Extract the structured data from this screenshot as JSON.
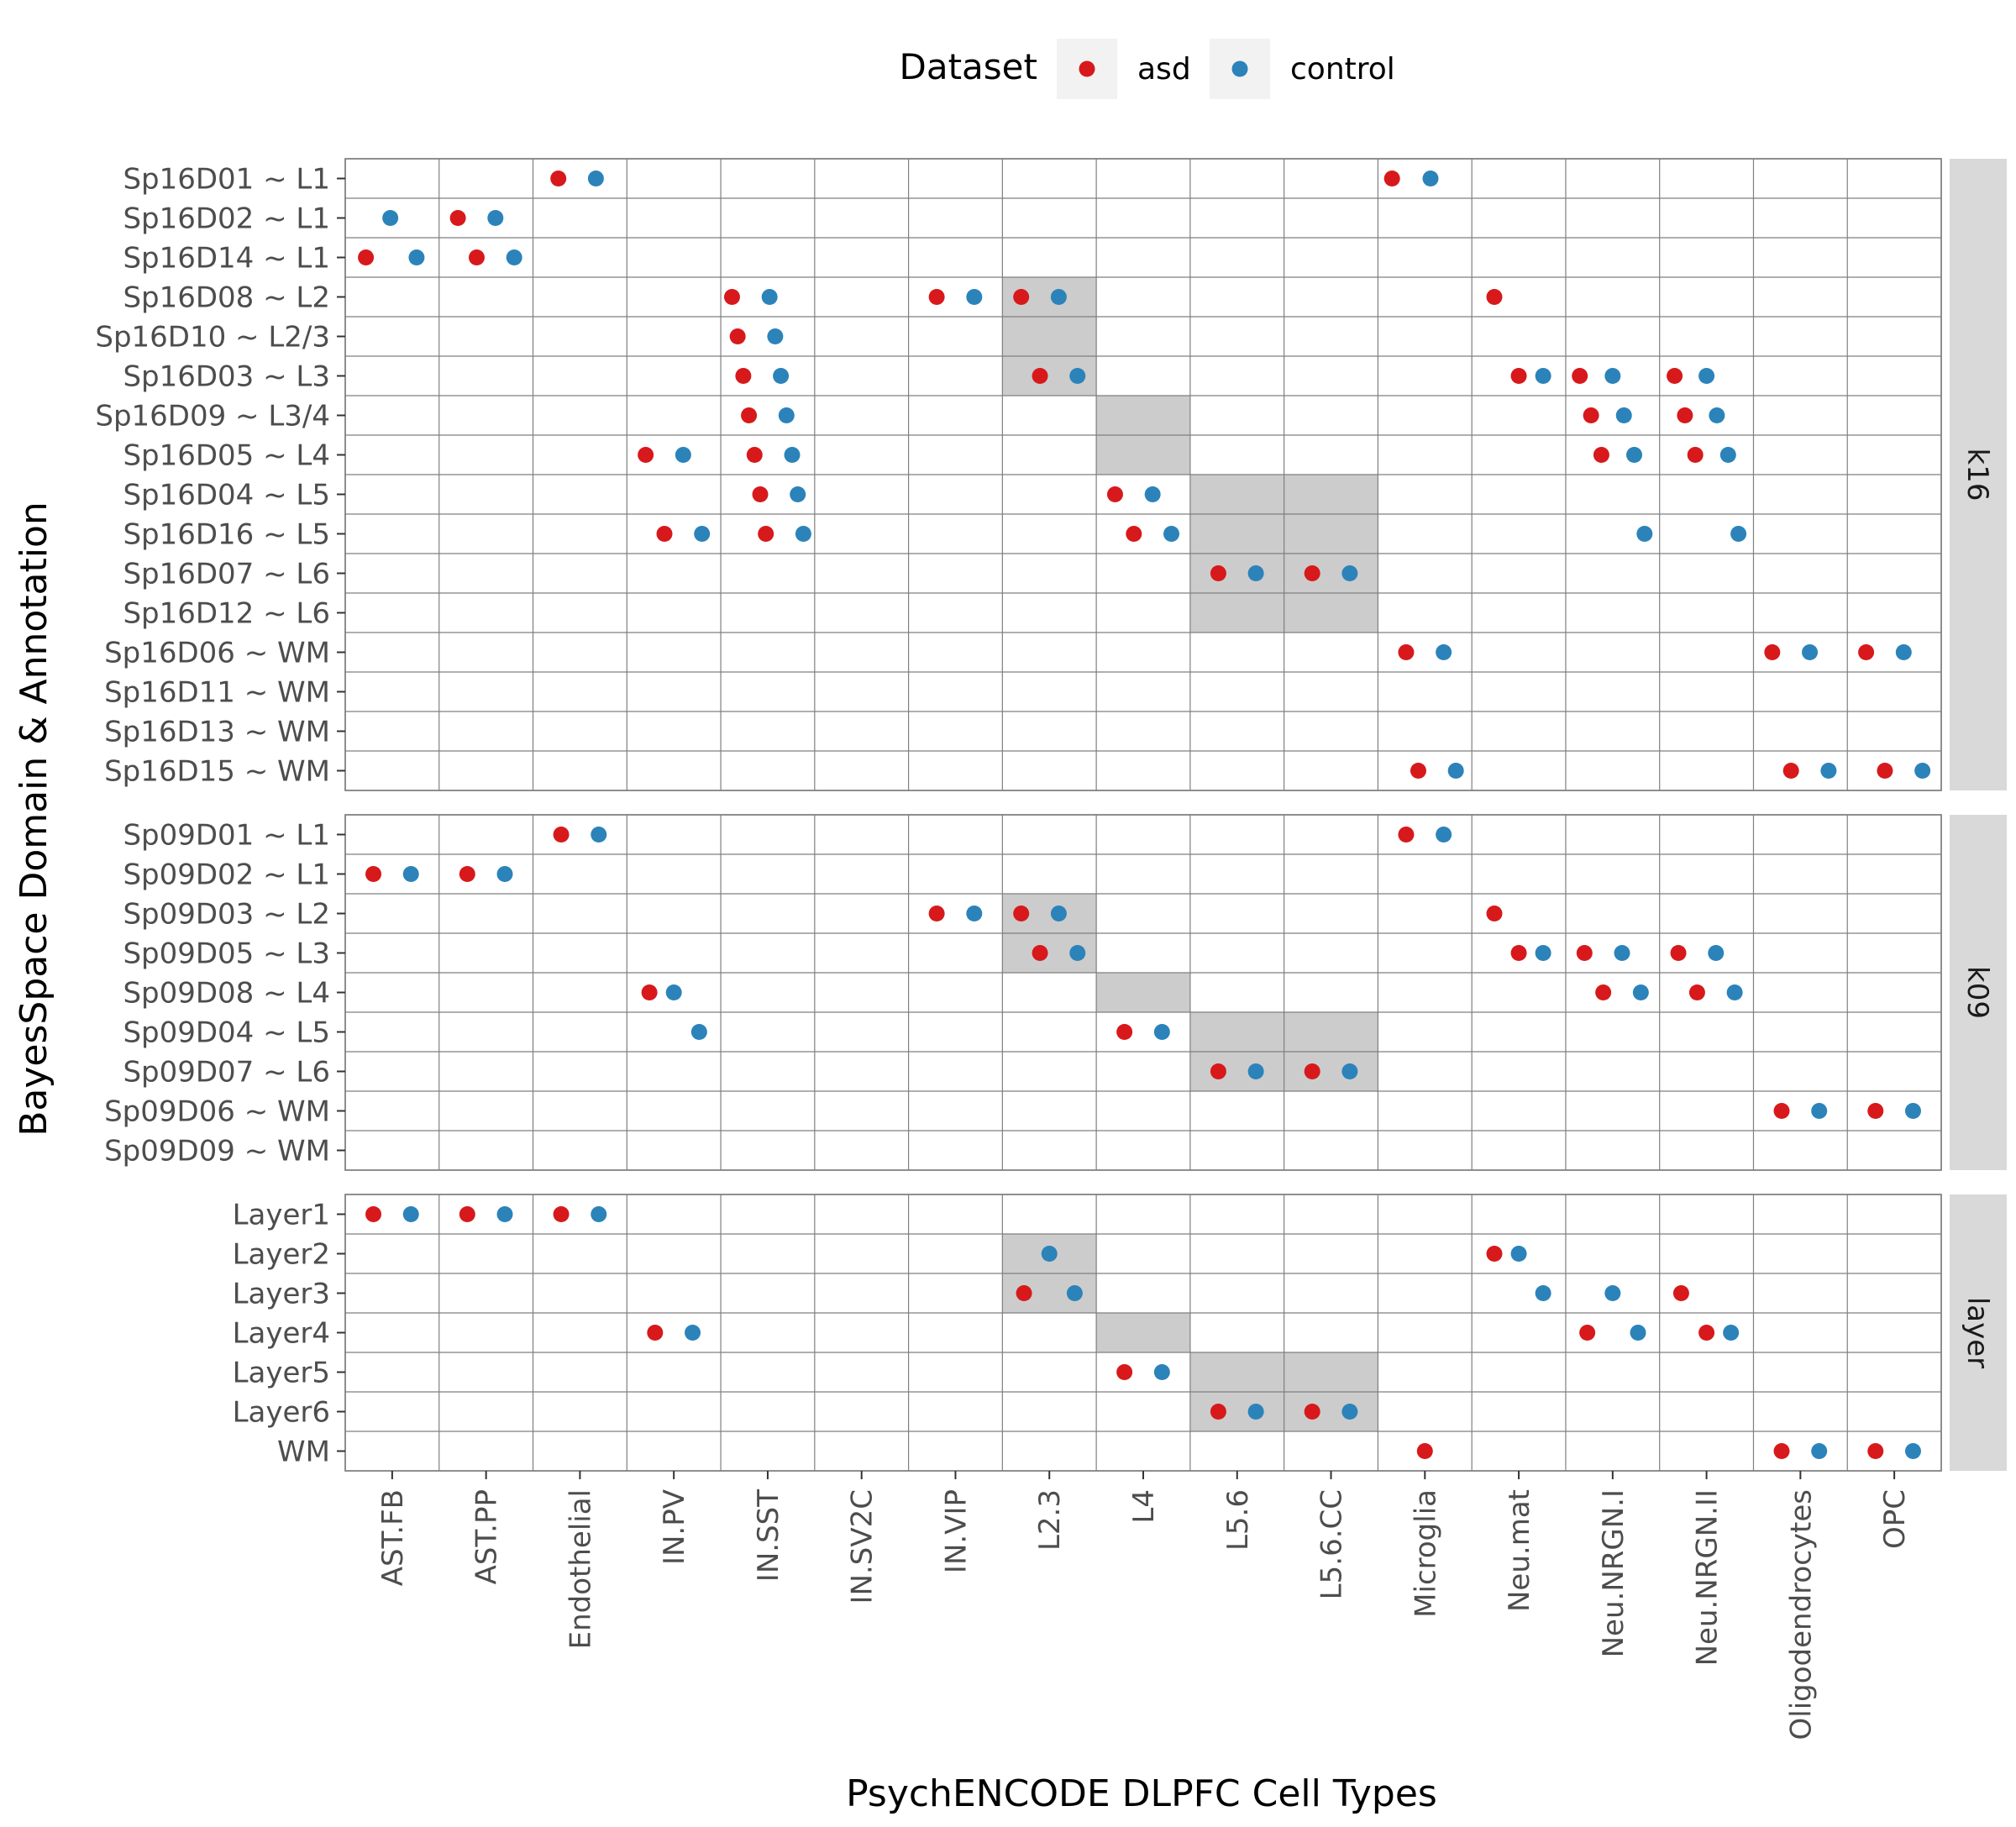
{
  "chart_data": {
    "type": "scatter",
    "xlabel": "PsychENCODE DLPFC Cell Types",
    "ylabel": "BayesSpace Domain & Annotation",
    "legend": {
      "title": "Dataset",
      "position": "top",
      "entries": [
        {
          "name": "asd",
          "color": "#D7191C"
        },
        {
          "name": "control",
          "color": "#2B83BA"
        }
      ]
    },
    "categories": [
      "AST.FB",
      "AST.PP",
      "Endothelial",
      "IN.PV",
      "IN.SST",
      "IN.SV2C",
      "IN.VIP",
      "L2.3",
      "L4",
      "L5.6",
      "L5.6.CC",
      "Microglia",
      "Neu.mat",
      "Neu.NRGN.I",
      "Neu.NRGN.II",
      "Oligodendrocytes",
      "OPC"
    ],
    "grid": true,
    "highlight_color": "#cccccc",
    "panels": [
      {
        "strip": "k16",
        "rows": [
          "Sp16D01 ~ L1",
          "Sp16D02 ~ L1",
          "Sp16D14 ~ L1",
          "Sp16D08 ~ L2",
          "Sp16D10 ~ L2/3",
          "Sp16D03 ~ L3",
          "Sp16D09 ~ L3/4",
          "Sp16D05 ~ L4",
          "Sp16D04 ~ L5",
          "Sp16D16 ~ L5",
          "Sp16D07 ~ L6",
          "Sp16D12 ~ L6",
          "Sp16D06 ~ WM",
          "Sp16D11 ~ WM",
          "Sp16D13 ~ WM",
          "Sp16D15 ~ WM"
        ],
        "highlights": [
          {
            "row": "Sp16D08 ~ L2",
            "cell": "L2.3"
          },
          {
            "row": "Sp16D10 ~ L2/3",
            "cell": "L2.3"
          },
          {
            "row": "Sp16D03 ~ L3",
            "cell": "L2.3"
          },
          {
            "row": "Sp16D09 ~ L3/4",
            "cell": "L4"
          },
          {
            "row": "Sp16D05 ~ L4",
            "cell": "L4"
          },
          {
            "row": "Sp16D04 ~ L5",
            "cell": "L5.6"
          },
          {
            "row": "Sp16D04 ~ L5",
            "cell": "L5.6.CC"
          },
          {
            "row": "Sp16D16 ~ L5",
            "cell": "L5.6"
          },
          {
            "row": "Sp16D16 ~ L5",
            "cell": "L5.6.CC"
          },
          {
            "row": "Sp16D07 ~ L6",
            "cell": "L5.6"
          },
          {
            "row": "Sp16D07 ~ L6",
            "cell": "L5.6.CC"
          },
          {
            "row": "Sp16D12 ~ L6",
            "cell": "L5.6"
          },
          {
            "row": "Sp16D12 ~ L6",
            "cell": "L5.6.CC"
          }
        ],
        "points": [
          {
            "row": "Sp16D01 ~ L1",
            "cell": "Endothelial",
            "asd": 0.27,
            "control": 0.67
          },
          {
            "row": "Sp16D01 ~ L1",
            "cell": "Microglia",
            "asd": 0.15,
            "control": 0.56
          },
          {
            "row": "Sp16D02 ~ L1",
            "cell": "AST.FB",
            "asd": null,
            "control": 0.48
          },
          {
            "row": "Sp16D02 ~ L1",
            "cell": "AST.PP",
            "asd": 0.2,
            "control": 0.6
          },
          {
            "row": "Sp16D14 ~ L1",
            "cell": "AST.FB",
            "asd": 0.22,
            "control": 0.76
          },
          {
            "row": "Sp16D14 ~ L1",
            "cell": "AST.PP",
            "asd": 0.4,
            "control": 0.8
          },
          {
            "row": "Sp16D08 ~ L2",
            "cell": "IN.SST",
            "asd": 0.12,
            "control": 0.52
          },
          {
            "row": "Sp16D08 ~ L2",
            "cell": "IN.VIP",
            "asd": 0.3,
            "control": 0.7
          },
          {
            "row": "Sp16D08 ~ L2",
            "cell": "L2.3",
            "asd": 0.2,
            "control": 0.6
          },
          {
            "row": "Sp16D08 ~ L2",
            "cell": "Neu.mat",
            "asd": 0.24,
            "control": null
          },
          {
            "row": "Sp16D10 ~ L2/3",
            "cell": "IN.SST",
            "asd": 0.18,
            "control": 0.58
          },
          {
            "row": "Sp16D03 ~ L3",
            "cell": "IN.SST",
            "asd": 0.24,
            "control": 0.64
          },
          {
            "row": "Sp16D03 ~ L3",
            "cell": "L2.3",
            "asd": 0.4,
            "control": 0.8
          },
          {
            "row": "Sp16D03 ~ L3",
            "cell": "Neu.mat",
            "asd": 0.5,
            "control": 0.76
          },
          {
            "row": "Sp16D03 ~ L3",
            "cell": "Neu.NRGN.I",
            "asd": 0.15,
            "control": 0.5
          },
          {
            "row": "Sp16D03 ~ L3",
            "cell": "Neu.NRGN.II",
            "asd": 0.16,
            "control": 0.5
          },
          {
            "row": "Sp16D09 ~ L3/4",
            "cell": "IN.SST",
            "asd": 0.3,
            "control": 0.7
          },
          {
            "row": "Sp16D09 ~ L3/4",
            "cell": "Neu.NRGN.I",
            "asd": 0.27,
            "control": 0.62
          },
          {
            "row": "Sp16D09 ~ L3/4",
            "cell": "Neu.NRGN.II",
            "asd": 0.27,
            "control": 0.61
          },
          {
            "row": "Sp16D05 ~ L4",
            "cell": "IN.PV",
            "asd": 0.2,
            "control": 0.6
          },
          {
            "row": "Sp16D05 ~ L4",
            "cell": "IN.SST",
            "asd": 0.36,
            "control": 0.76
          },
          {
            "row": "Sp16D05 ~ L4",
            "cell": "Neu.NRGN.I",
            "asd": 0.38,
            "control": 0.73
          },
          {
            "row": "Sp16D05 ~ L4",
            "cell": "Neu.NRGN.II",
            "asd": 0.38,
            "control": 0.73
          },
          {
            "row": "Sp16D04 ~ L5",
            "cell": "IN.SST",
            "asd": 0.42,
            "control": 0.82
          },
          {
            "row": "Sp16D04 ~ L5",
            "cell": "L4",
            "asd": 0.2,
            "control": 0.6
          },
          {
            "row": "Sp16D16 ~ L5",
            "cell": "IN.PV",
            "asd": 0.4,
            "control": 0.8
          },
          {
            "row": "Sp16D16 ~ L5",
            "cell": "IN.SST",
            "asd": 0.48,
            "control": 0.88
          },
          {
            "row": "Sp16D16 ~ L5",
            "cell": "L4",
            "asd": 0.4,
            "control": 0.8
          },
          {
            "row": "Sp16D16 ~ L5",
            "cell": "Neu.NRGN.I",
            "asd": null,
            "control": 0.84
          },
          {
            "row": "Sp16D16 ~ L5",
            "cell": "Neu.NRGN.II",
            "asd": null,
            "control": 0.84
          },
          {
            "row": "Sp16D07 ~ L6",
            "cell": "L5.6",
            "asd": 0.3,
            "control": 0.7
          },
          {
            "row": "Sp16D07 ~ L6",
            "cell": "L5.6.CC",
            "asd": 0.3,
            "control": 0.7
          },
          {
            "row": "Sp16D06 ~ WM",
            "cell": "Microglia",
            "asd": 0.3,
            "control": 0.7
          },
          {
            "row": "Sp16D06 ~ WM",
            "cell": "Oligodendrocytes",
            "asd": 0.2,
            "control": 0.6
          },
          {
            "row": "Sp16D06 ~ WM",
            "cell": "OPC",
            "asd": 0.2,
            "control": 0.6
          },
          {
            "row": "Sp16D15 ~ WM",
            "cell": "Microglia",
            "asd": 0.43,
            "control": 0.83
          },
          {
            "row": "Sp16D15 ~ WM",
            "cell": "Oligodendrocytes",
            "asd": 0.4,
            "control": 0.8
          },
          {
            "row": "Sp16D15 ~ WM",
            "cell": "OPC",
            "asd": 0.4,
            "control": 0.8
          }
        ]
      },
      {
        "strip": "k09",
        "rows": [
          "Sp09D01 ~ L1",
          "Sp09D02 ~ L1",
          "Sp09D03 ~ L2",
          "Sp09D05 ~ L3",
          "Sp09D08 ~ L4",
          "Sp09D04 ~ L5",
          "Sp09D07 ~ L6",
          "Sp09D06 ~ WM",
          "Sp09D09 ~ WM"
        ],
        "highlights": [
          {
            "row": "Sp09D03 ~ L2",
            "cell": "L2.3"
          },
          {
            "row": "Sp09D05 ~ L3",
            "cell": "L2.3"
          },
          {
            "row": "Sp09D08 ~ L4",
            "cell": "L4"
          },
          {
            "row": "Sp09D04 ~ L5",
            "cell": "L5.6"
          },
          {
            "row": "Sp09D04 ~ L5",
            "cell": "L5.6.CC"
          },
          {
            "row": "Sp09D07 ~ L6",
            "cell": "L5.6"
          },
          {
            "row": "Sp09D07 ~ L6",
            "cell": "L5.6.CC"
          }
        ],
        "points": [
          {
            "row": "Sp09D01 ~ L1",
            "cell": "Endothelial",
            "asd": 0.3,
            "control": 0.7
          },
          {
            "row": "Sp09D01 ~ L1",
            "cell": "Microglia",
            "asd": 0.3,
            "control": 0.7
          },
          {
            "row": "Sp09D02 ~ L1",
            "cell": "AST.FB",
            "asd": 0.3,
            "control": 0.7
          },
          {
            "row": "Sp09D02 ~ L1",
            "cell": "AST.PP",
            "asd": 0.3,
            "control": 0.7
          },
          {
            "row": "Sp09D03 ~ L2",
            "cell": "IN.VIP",
            "asd": 0.3,
            "control": 0.7
          },
          {
            "row": "Sp09D03 ~ L2",
            "cell": "L2.3",
            "asd": 0.2,
            "control": 0.6
          },
          {
            "row": "Sp09D03 ~ L2",
            "cell": "Neu.mat",
            "asd": 0.24,
            "control": null
          },
          {
            "row": "Sp09D05 ~ L3",
            "cell": "L2.3",
            "asd": 0.4,
            "control": 0.8
          },
          {
            "row": "Sp09D05 ~ L3",
            "cell": "Neu.mat",
            "asd": 0.5,
            "control": 0.76
          },
          {
            "row": "Sp09D05 ~ L3",
            "cell": "Neu.NRGN.I",
            "asd": 0.2,
            "control": 0.6
          },
          {
            "row": "Sp09D05 ~ L3",
            "cell": "Neu.NRGN.II",
            "asd": 0.2,
            "control": 0.6
          },
          {
            "row": "Sp09D08 ~ L4",
            "cell": "IN.PV",
            "asd": 0.24,
            "control": 0.5
          },
          {
            "row": "Sp09D08 ~ L4",
            "cell": "Neu.NRGN.I",
            "asd": 0.4,
            "control": 0.8
          },
          {
            "row": "Sp09D08 ~ L4",
            "cell": "Neu.NRGN.II",
            "asd": 0.4,
            "control": 0.8
          },
          {
            "row": "Sp09D04 ~ L5",
            "cell": "IN.PV",
            "asd": null,
            "control": 0.77
          },
          {
            "row": "Sp09D04 ~ L5",
            "cell": "L4",
            "asd": 0.3,
            "control": 0.7
          },
          {
            "row": "Sp09D07 ~ L6",
            "cell": "L5.6",
            "asd": 0.3,
            "control": 0.7
          },
          {
            "row": "Sp09D07 ~ L6",
            "cell": "L5.6.CC",
            "asd": 0.3,
            "control": 0.7
          },
          {
            "row": "Sp09D06 ~ WM",
            "cell": "Oligodendrocytes",
            "asd": 0.3,
            "control": 0.7
          },
          {
            "row": "Sp09D06 ~ WM",
            "cell": "OPC",
            "asd": 0.3,
            "control": 0.7
          }
        ]
      },
      {
        "strip": "layer",
        "rows": [
          "Layer1",
          "Layer2",
          "Layer3",
          "Layer4",
          "Layer5",
          "Layer6",
          "WM"
        ],
        "highlights": [
          {
            "row": "Layer2",
            "cell": "L2.3"
          },
          {
            "row": "Layer3",
            "cell": "L2.3"
          },
          {
            "row": "Layer4",
            "cell": "L4"
          },
          {
            "row": "Layer5",
            "cell": "L5.6"
          },
          {
            "row": "Layer5",
            "cell": "L5.6.CC"
          },
          {
            "row": "Layer6",
            "cell": "L5.6"
          },
          {
            "row": "Layer6",
            "cell": "L5.6.CC"
          }
        ],
        "points": [
          {
            "row": "Layer1",
            "cell": "AST.FB",
            "asd": 0.3,
            "control": 0.7
          },
          {
            "row": "Layer1",
            "cell": "AST.PP",
            "asd": 0.3,
            "control": 0.7
          },
          {
            "row": "Layer1",
            "cell": "Endothelial",
            "asd": 0.3,
            "control": 0.7
          },
          {
            "row": "Layer2",
            "cell": "L2.3",
            "asd": null,
            "control": 0.5
          },
          {
            "row": "Layer2",
            "cell": "Neu.mat",
            "asd": 0.24,
            "control": 0.5
          },
          {
            "row": "Layer3",
            "cell": "L2.3",
            "asd": 0.23,
            "control": 0.77
          },
          {
            "row": "Layer3",
            "cell": "Neu.mat",
            "asd": null,
            "control": 0.76
          },
          {
            "row": "Layer3",
            "cell": "Neu.NRGN.I",
            "asd": null,
            "control": 0.5
          },
          {
            "row": "Layer3",
            "cell": "Neu.NRGN.II",
            "asd": 0.23,
            "control": null
          },
          {
            "row": "Layer4",
            "cell": "IN.PV",
            "asd": 0.3,
            "control": 0.7
          },
          {
            "row": "Layer4",
            "cell": "Neu.NRGN.I",
            "asd": 0.23,
            "control": 0.77
          },
          {
            "row": "Layer4",
            "cell": "Neu.NRGN.II",
            "asd": 0.5,
            "control": 0.76
          },
          {
            "row": "Layer5",
            "cell": "L4",
            "asd": 0.3,
            "control": 0.7
          },
          {
            "row": "Layer6",
            "cell": "L5.6",
            "asd": 0.3,
            "control": 0.7
          },
          {
            "row": "Layer6",
            "cell": "L5.6.CC",
            "asd": 0.3,
            "control": 0.7
          },
          {
            "row": "WM",
            "cell": "Microglia",
            "asd": 0.5,
            "control": null
          },
          {
            "row": "WM",
            "cell": "Oligodendrocytes",
            "asd": 0.3,
            "control": 0.7
          },
          {
            "row": "WM",
            "cell": "OPC",
            "asd": 0.3,
            "control": 0.7
          }
        ]
      }
    ]
  }
}
